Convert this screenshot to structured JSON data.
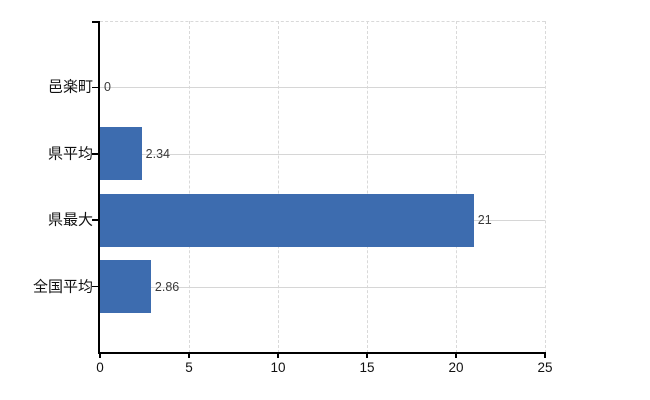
{
  "figure": {
    "background": "#ffffff"
  },
  "chart_data": {
    "type": "bar",
    "orientation": "horizontal",
    "title": "",
    "categories": [
      "邑楽町",
      "県平均",
      "県最大",
      "全国平均"
    ],
    "values": [
      0,
      2.34,
      21,
      2.86
    ],
    "value_labels": [
      "0",
      "2.34",
      "21",
      "2.86"
    ],
    "xlim": [
      0,
      25
    ],
    "x_ticks": [
      0,
      5,
      10,
      15,
      20,
      25
    ],
    "x_tick_labels": [
      "0",
      "5",
      "10",
      "15",
      "20",
      "25"
    ],
    "xlabel": "",
    "ylabel": "",
    "legend": "none",
    "grid": {
      "vertical": "dashed",
      "horizontal": "solid",
      "top_border": "dashed"
    },
    "colors": {
      "bar": "#3d6caf",
      "axis": "#000000",
      "h_gridline": "#d6d6d6",
      "v_gridline": "#d9d9d9",
      "category_label": "#111111",
      "tick_label": "#111111",
      "value_label": "#3a3a3a",
      "background": "#ffffff"
    }
  }
}
